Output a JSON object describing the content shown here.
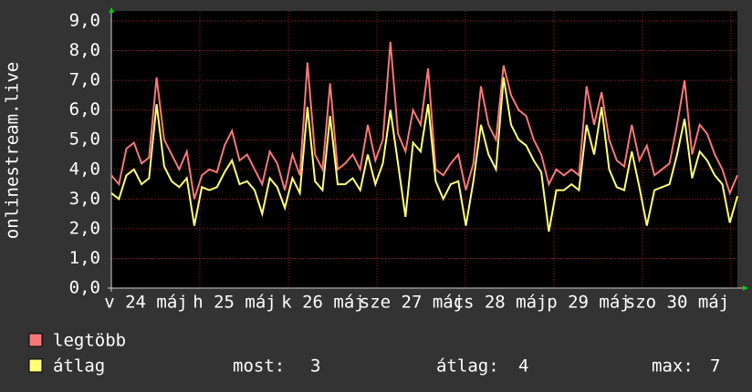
{
  "chart_data": {
    "type": "line",
    "y_label": "onlinestream.live",
    "x_labels": [
      "v 24 máj",
      "h 25 máj",
      "k 26 máj",
      "sze 27 máj",
      "cs 28 máj",
      "p 29 máj",
      "szo 30 máj"
    ],
    "ylim": [
      0,
      9
    ],
    "yticks": [
      {
        "value": 0,
        "label": "0,0"
      },
      {
        "value": 1,
        "label": "1,0"
      },
      {
        "value": 2,
        "label": "2,0"
      },
      {
        "value": 3,
        "label": "3,0"
      },
      {
        "value": 4,
        "label": "4,0"
      },
      {
        "value": 5,
        "label": "5,0"
      },
      {
        "value": 6,
        "label": "6,0"
      },
      {
        "value": 7,
        "label": "7,0"
      },
      {
        "value": 8,
        "label": "8,0"
      },
      {
        "value": 9,
        "label": "9,0"
      }
    ],
    "grid": true,
    "series": [
      {
        "name": "legtöbb",
        "color": "#f87878",
        "values": [
          3.8,
          3.5,
          4.7,
          4.9,
          4.2,
          4.4,
          7.1,
          5.0,
          4.5,
          4.0,
          4.6,
          3.0,
          3.8,
          4.0,
          3.9,
          4.8,
          5.3,
          4.3,
          4.5,
          4.0,
          3.5,
          4.6,
          4.2,
          3.3,
          4.5,
          3.8,
          7.6,
          4.5,
          4.0,
          6.9,
          4.0,
          4.2,
          4.5,
          4.0,
          5.5,
          4.3,
          5.0,
          8.3,
          5.2,
          4.6,
          6.0,
          5.5,
          7.4,
          4.0,
          3.8,
          4.2,
          4.5,
          3.3,
          4.2,
          6.8,
          5.5,
          5.0,
          7.5,
          6.5,
          6.0,
          5.8,
          5.0,
          4.5,
          3.5,
          4.0,
          3.8,
          4.0,
          3.8,
          6.8,
          5.5,
          6.6,
          5.0,
          4.3,
          4.1,
          5.5,
          4.3,
          4.8,
          3.8,
          4.0,
          4.2,
          5.5,
          7.0,
          4.5,
          5.5,
          5.2,
          4.5,
          4.0,
          3.2,
          3.8
        ]
      },
      {
        "name": "átlag",
        "color": "#ffff77",
        "values": [
          3.2,
          3.0,
          3.8,
          4.0,
          3.5,
          3.7,
          6.2,
          4.1,
          3.6,
          3.4,
          3.7,
          2.1,
          3.4,
          3.3,
          3.4,
          3.9,
          4.3,
          3.5,
          3.6,
          3.3,
          2.5,
          3.7,
          3.4,
          2.7,
          3.7,
          3.2,
          6.1,
          3.6,
          3.3,
          5.8,
          3.5,
          3.5,
          3.7,
          3.3,
          4.5,
          3.5,
          4.2,
          6.0,
          4.2,
          2.4,
          4.9,
          4.6,
          6.2,
          3.6,
          3.0,
          3.5,
          3.6,
          2.1,
          3.6,
          5.5,
          4.5,
          4.0,
          7.1,
          5.5,
          5.0,
          4.8,
          4.3,
          3.9,
          1.9,
          3.3,
          3.3,
          3.5,
          3.3,
          5.5,
          4.5,
          6.1,
          4.0,
          3.4,
          3.3,
          4.6,
          3.4,
          2.1,
          3.3,
          3.4,
          3.5,
          4.5,
          5.7,
          3.7,
          4.6,
          4.3,
          3.8,
          3.5,
          2.2,
          3.1
        ]
      }
    ],
    "stats": [
      {
        "label": "most:",
        "value": 3
      },
      {
        "label": "átlag:",
        "value": 4
      },
      {
        "label": "max:",
        "value": 7
      }
    ]
  }
}
